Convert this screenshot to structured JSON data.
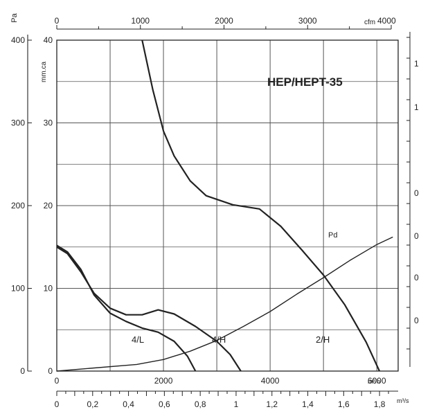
{
  "chart_data": {
    "type": "line",
    "title": "HEP/HEPT-35",
    "units": {
      "pa": "Pa",
      "mmca": "mm.ca",
      "cfm": "cfm",
      "m3h": "m³/h",
      "m3s": "m³/s"
    },
    "axes": {
      "pa_ticks": [
        "0",
        "100",
        "200",
        "300",
        "400"
      ],
      "mmca_ticks": [
        "0",
        "10",
        "20",
        "30",
        "40"
      ],
      "cfm_ticks": [
        "0",
        "1000",
        "2000",
        "3000",
        "4000"
      ],
      "m3h_ticks": [
        "0",
        "2000",
        "4000",
        "6000"
      ],
      "m3s_ticks": [
        "0",
        "0,2",
        "0,4",
        "0,6",
        "0,8",
        "1",
        "1,2",
        "1,4",
        "1,6",
        "1,8"
      ],
      "xlim_m3h": [
        0,
        6400
      ],
      "ylim_mmca": [
        0,
        40
      ],
      "ylim_pa": [
        0,
        400
      ],
      "right_axis_partial_ticks": [
        "1",
        "1",
        "0",
        "0",
        "0",
        "0"
      ]
    },
    "series": [
      {
        "name": "2/H",
        "points": [
          [
            1600,
            40
          ],
          [
            1800,
            34
          ],
          [
            2000,
            29
          ],
          [
            2200,
            26
          ],
          [
            2500,
            23
          ],
          [
            2800,
            21.2
          ],
          [
            3300,
            20.1
          ],
          [
            3800,
            19.6
          ],
          [
            4200,
            17.5
          ],
          [
            4600,
            14.6
          ],
          [
            5000,
            11.6
          ],
          [
            5400,
            8
          ],
          [
            5800,
            3.5
          ],
          [
            6050,
            0
          ]
        ]
      },
      {
        "name": "4/H",
        "points": [
          [
            0,
            15
          ],
          [
            200,
            14.2
          ],
          [
            450,
            12
          ],
          [
            700,
            9.4
          ],
          [
            1000,
            7.6
          ],
          [
            1300,
            6.8
          ],
          [
            1600,
            6.8
          ],
          [
            1900,
            7.4
          ],
          [
            2200,
            6.9
          ],
          [
            2600,
            5.4
          ],
          [
            3000,
            3.6
          ],
          [
            3250,
            2
          ],
          [
            3450,
            0
          ]
        ]
      },
      {
        "name": "4/L",
        "points": [
          [
            0,
            15.2
          ],
          [
            200,
            14.4
          ],
          [
            450,
            12.3
          ],
          [
            700,
            9.2
          ],
          [
            1000,
            7
          ],
          [
            1300,
            6
          ],
          [
            1600,
            5.2
          ],
          [
            1900,
            4.7
          ],
          [
            2200,
            3.6
          ],
          [
            2450,
            1.8
          ],
          [
            2600,
            0
          ]
        ]
      },
      {
        "name": "Pd",
        "points": [
          [
            0,
            0
          ],
          [
            1500,
            0.8
          ],
          [
            2000,
            1.4
          ],
          [
            2500,
            2.4
          ],
          [
            3000,
            3.7
          ],
          [
            3500,
            5.4
          ],
          [
            4000,
            7.2
          ],
          [
            4500,
            9.3
          ],
          [
            5000,
            11.3
          ],
          [
            5500,
            13.4
          ],
          [
            6000,
            15.3
          ],
          [
            6300,
            16.2
          ]
        ]
      }
    ]
  }
}
